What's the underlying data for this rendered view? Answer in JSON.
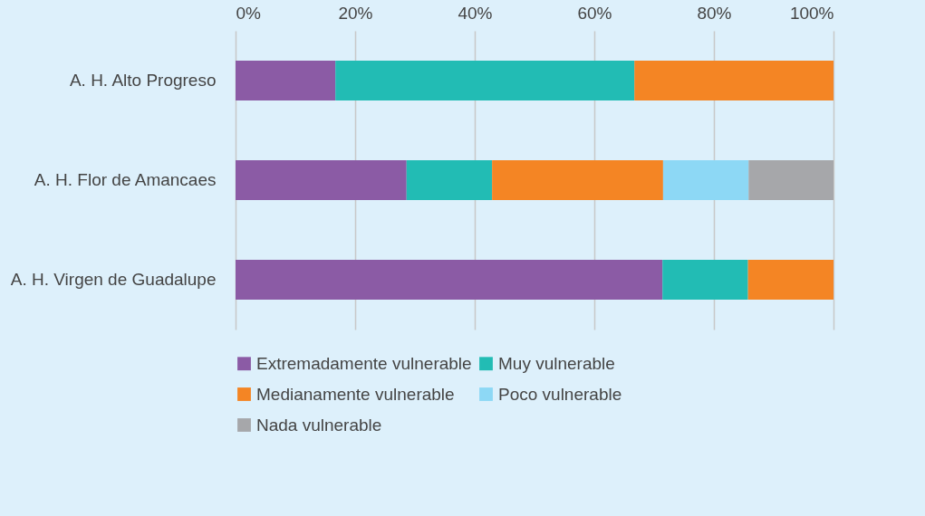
{
  "chart_data": {
    "type": "bar",
    "orientation": "horizontal",
    "stacked": true,
    "categories": [
      "A. H.  Alto Progreso",
      "A. H.  Flor de Amancaes",
      "A. H.  Virgen de Guadalupe"
    ],
    "series": [
      {
        "name": "Extremadamente vulnerable",
        "color": "#8b5ba5",
        "values": [
          16.7,
          28.6,
          71.4
        ]
      },
      {
        "name": "Muy vulnerable",
        "color": "#22bcb4",
        "values": [
          50,
          14.3,
          14.3
        ]
      },
      {
        "name": "Medianamente vulnerable",
        "color": "#f48524",
        "values": [
          33.3,
          28.6,
          14.3
        ]
      },
      {
        "name": "Poco vulnerable",
        "color": "#8dd8f5",
        "values": [
          null,
          14.3,
          null
        ]
      },
      {
        "name": "Nada vulnerable",
        "color": "#a6a7aa",
        "values": [
          null,
          14.2,
          null
        ]
      }
    ],
    "xlim": [
      0,
      100
    ],
    "xticks": [
      {
        "value": 0,
        "label": "0%"
      },
      {
        "value": 20,
        "label": "20%"
      },
      {
        "value": 40,
        "label": "40%"
      },
      {
        "value": 60,
        "label": "60%"
      },
      {
        "value": 80,
        "label": "80%"
      },
      {
        "value": 100,
        "label": "100%"
      }
    ],
    "grid": "x",
    "legend": "bottom"
  }
}
